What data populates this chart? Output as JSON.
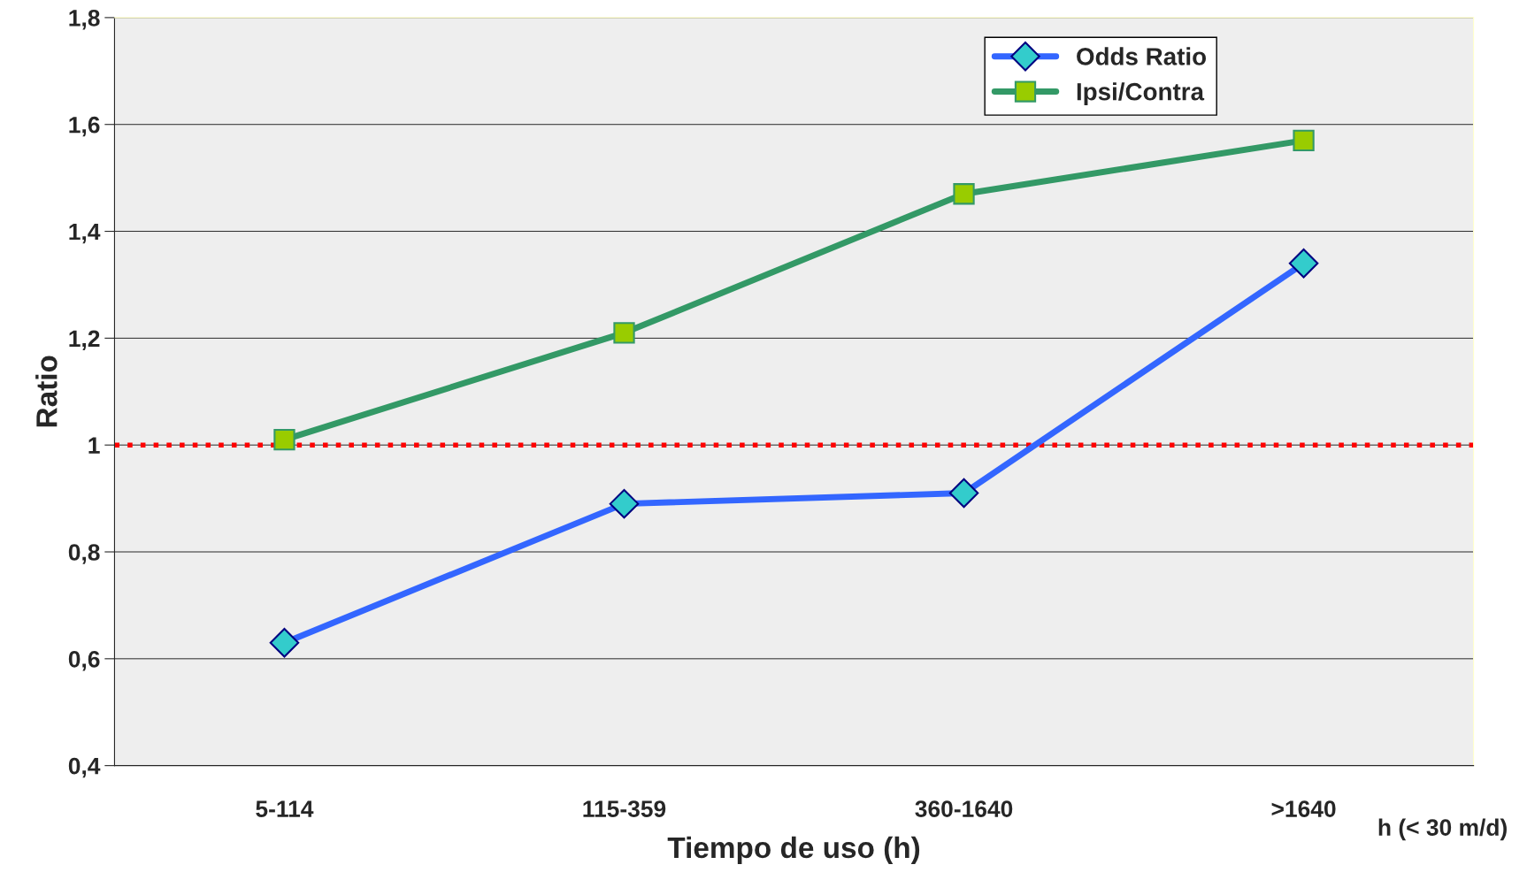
{
  "chart_data": {
    "type": "line",
    "xlabel": "Tiempo de uso (h)",
    "ylabel": "Ratio",
    "categories": [
      "5-114",
      "115-359",
      "360-1640",
      ">1640"
    ],
    "series": [
      {
        "name": "Odds Ratio",
        "color": "#3366ff",
        "values": [
          0.63,
          0.89,
          0.91,
          1.34
        ],
        "marker": "diamond"
      },
      {
        "name": "Ipsi/Contra",
        "color": "#339966",
        "values": [
          1.01,
          1.21,
          1.47,
          1.57
        ],
        "marker": "square"
      }
    ],
    "ylim": [
      0.4,
      1.8
    ],
    "yticks": [
      {
        "value": 0.4,
        "label": "0,4"
      },
      {
        "value": 0.6,
        "label": "0,6"
      },
      {
        "value": 0.8,
        "label": "0,8"
      },
      1,
      {
        "value": 1.2,
        "label": "1,2"
      },
      {
        "value": 1.4,
        "label": "1,4"
      },
      {
        "value": 1.6,
        "label": "1,6"
      },
      {
        "value": 1.8,
        "label": "1,8"
      }
    ],
    "ref_lines": [
      {
        "axis": "y",
        "value": 1,
        "color": "#ff0000",
        "line_style": "dotted"
      }
    ],
    "annotations": [
      "h (< 30 m/d)"
    ],
    "grid": "y",
    "legend": "top right",
    "line_style": "solid"
  }
}
